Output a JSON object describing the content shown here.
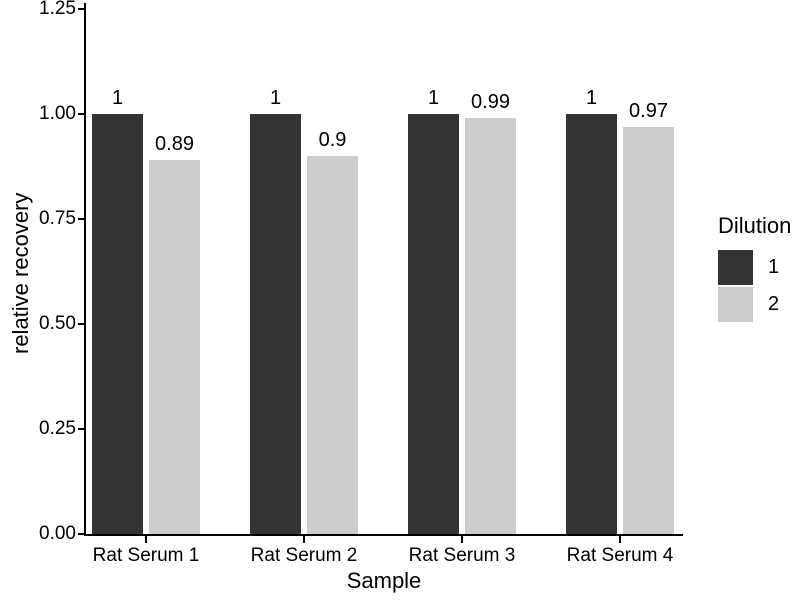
{
  "chart_data": {
    "type": "bar",
    "title": "",
    "xlabel": "Sample",
    "ylabel": "relative recovery",
    "categories": [
      "Rat Serum 1",
      "Rat Serum 2",
      "Rat Serum 3",
      "Rat Serum 4"
    ],
    "series": [
      {
        "name": "1",
        "color": "#333333",
        "values": [
          1,
          1,
          1,
          1
        ],
        "value_labels": [
          "1",
          "1",
          "1",
          "1"
        ]
      },
      {
        "name": "2",
        "color": "#cccccc",
        "values": [
          0.89,
          0.9,
          0.99,
          0.97
        ],
        "value_labels": [
          "0.89",
          "0.9",
          "0.99",
          "0.97"
        ]
      }
    ],
    "ylim": [
      0,
      1.25
    ],
    "yticks": [
      {
        "value": 0.0,
        "label": "0.00"
      },
      {
        "value": 0.25,
        "label": "0.25"
      },
      {
        "value": 0.5,
        "label": "0.50"
      },
      {
        "value": 0.75,
        "label": "0.75"
      },
      {
        "value": 1.0,
        "label": "1.00"
      },
      {
        "value": 1.25,
        "label": "1.25"
      }
    ],
    "legend": {
      "title": "Dilution",
      "position": "right"
    },
    "grid": false,
    "background_color": "#ffffff",
    "axis_color": "#000000",
    "text_color": "#000000"
  }
}
